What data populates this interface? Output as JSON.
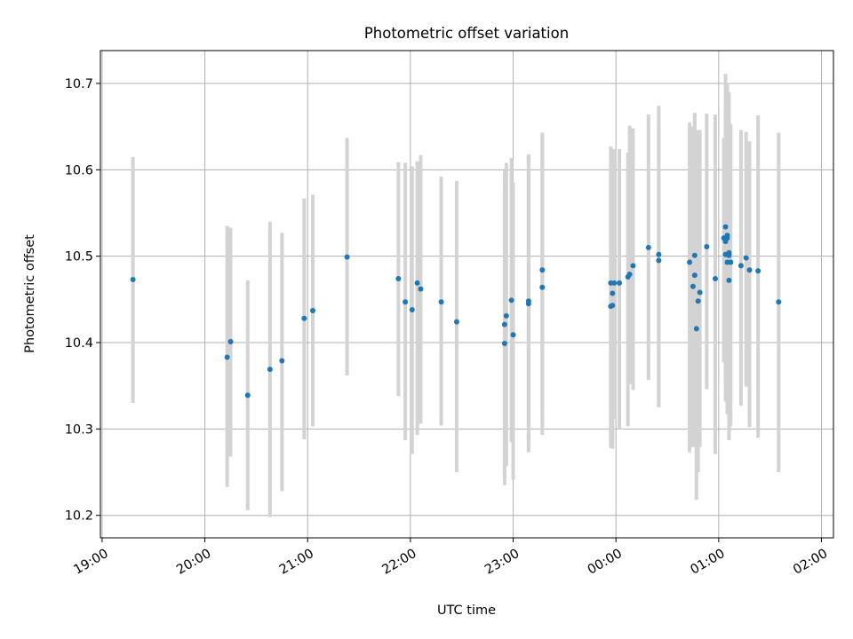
{
  "chart_data": {
    "type": "scatter",
    "title": "Photometric offset variation",
    "xlabel": "UTC time",
    "ylabel": "Photometric offset",
    "xlim": [
      "18:59",
      "02:07"
    ],
    "ylim": [
      10.174,
      10.738
    ],
    "x_ticks": [
      "19:00",
      "20:00",
      "21:00",
      "22:00",
      "23:00",
      "00:00",
      "01:00",
      "02:00"
    ],
    "y_ticks": [
      10.2,
      10.3,
      10.4,
      10.5,
      10.6,
      10.7
    ],
    "grid": true,
    "marker_color": "#1f77b4",
    "errorbar_color": "#d3d3d3",
    "series": [
      {
        "x": [
          "19:18",
          "20:13",
          "20:15",
          "20:25",
          "20:38",
          "20:45",
          "20:58",
          "21:03",
          "21:23",
          "21:53",
          "21:57",
          "22:01",
          "22:04",
          "22:06",
          "22:18",
          "22:27",
          "22:55",
          "22:55",
          "22:56",
          "22:59",
          "23:00",
          "23:09",
          "23:09",
          "23:17",
          "23:17",
          "23:57",
          "23:57",
          "23:58",
          "23:58",
          "23:59",
          "00:02",
          "00:07",
          "00:08",
          "00:10",
          "00:19",
          "00:25",
          "00:25",
          "00:43",
          "00:45",
          "00:46",
          "00:46",
          "00:47",
          "00:48",
          "00:49",
          "00:53",
          "00:58",
          "01:03",
          "01:04",
          "01:04",
          "01:04",
          "01:05",
          "01:05",
          "01:05",
          "01:06",
          "01:06",
          "01:06",
          "01:07",
          "01:13",
          "01:16",
          "01:18",
          "01:23",
          "01:35"
        ],
        "y": [
          10.473,
          10.383,
          10.401,
          10.339,
          10.369,
          10.379,
          10.428,
          10.437,
          10.499,
          10.474,
          10.447,
          10.438,
          10.469,
          10.462,
          10.447,
          10.424,
          10.421,
          10.399,
          10.431,
          10.449,
          10.409,
          10.445,
          10.448,
          10.484,
          10.464,
          10.442,
          10.469,
          10.457,
          10.443,
          10.469,
          10.469,
          10.476,
          10.479,
          10.489,
          10.51,
          10.495,
          10.502,
          10.493,
          10.465,
          10.478,
          10.501,
          10.416,
          10.448,
          10.458,
          10.511,
          10.474,
          10.521,
          10.502,
          10.534,
          10.517,
          10.524,
          10.521,
          10.493,
          10.501,
          10.504,
          10.472,
          10.493,
          10.489,
          10.498,
          10.484,
          10.483,
          10.447
        ],
        "yerr_low": [
          10.33,
          10.233,
          10.268,
          10.206,
          10.198,
          10.228,
          10.288,
          10.303,
          10.362,
          10.338,
          10.287,
          10.271,
          10.293,
          10.306,
          10.304,
          10.25,
          10.245,
          10.235,
          10.257,
          10.285,
          10.241,
          10.273,
          10.281,
          10.323,
          10.293,
          10.278,
          10.289,
          10.277,
          10.283,
          10.312,
          10.3,
          10.303,
          10.352,
          10.345,
          10.357,
          10.325,
          10.325,
          10.273,
          10.279,
          10.289,
          10.319,
          10.218,
          10.25,
          10.279,
          10.346,
          10.271,
          10.377,
          10.353,
          10.398,
          10.332,
          10.375,
          10.359,
          10.317,
          10.339,
          10.345,
          10.287,
          10.303,
          10.327,
          10.349,
          10.302,
          10.29,
          10.25
        ],
        "yerr_high": [
          10.615,
          10.535,
          10.533,
          10.472,
          10.54,
          10.527,
          10.567,
          10.571,
          10.637,
          10.609,
          10.608,
          10.604,
          10.61,
          10.617,
          10.592,
          10.587,
          10.599,
          10.578,
          10.608,
          10.614,
          10.585,
          10.616,
          10.618,
          10.643,
          10.64,
          10.604,
          10.627,
          10.623,
          10.607,
          10.624,
          10.624,
          10.62,
          10.651,
          10.648,
          10.664,
          10.648,
          10.674,
          10.655,
          10.65,
          10.664,
          10.666,
          10.589,
          10.646,
          10.646,
          10.665,
          10.664,
          10.637,
          10.665,
          10.711,
          10.676,
          10.7,
          10.691,
          10.694,
          10.69,
          10.659,
          10.657,
          10.653,
          10.646,
          10.644,
          10.633,
          10.663,
          10.643
        ]
      }
    ]
  }
}
